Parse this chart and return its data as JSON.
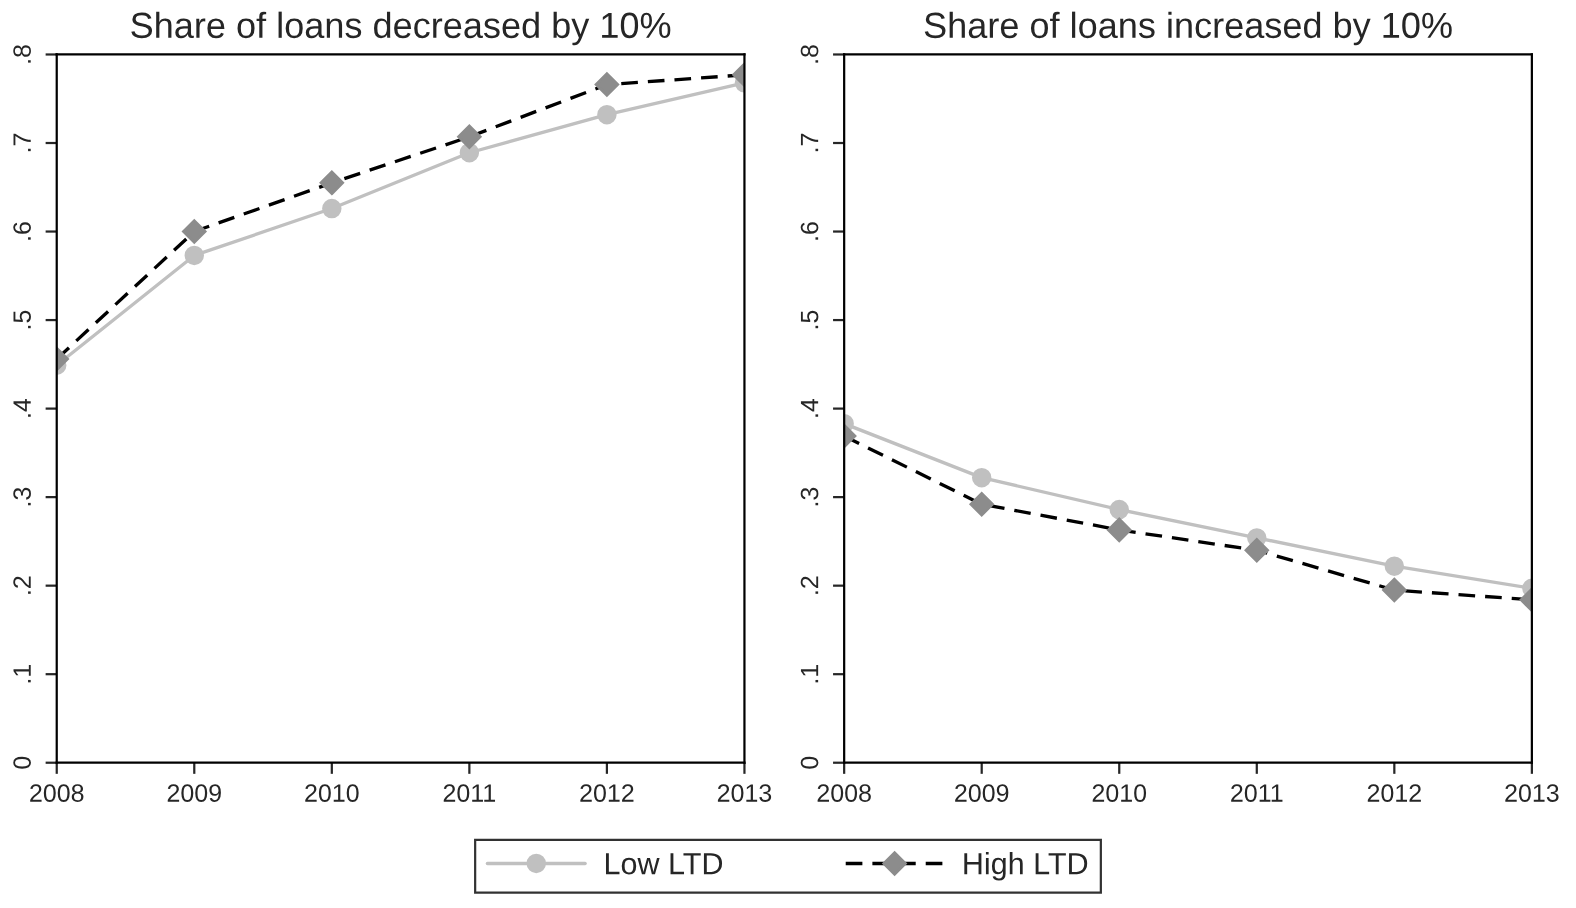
{
  "chart_data": [
    {
      "type": "line",
      "title": "Share of loans decreased by 10%",
      "x": [
        2008,
        2009,
        2010,
        2011,
        2012,
        2013
      ],
      "xlim": [
        2008,
        2013
      ],
      "xticks": [
        2008,
        2009,
        2010,
        2011,
        2012,
        2013
      ],
      "ylim": [
        0,
        0.8
      ],
      "yticks": [
        {
          "value": 0,
          "label": "0"
        },
        {
          "value": 0.1,
          "label": ".1"
        },
        {
          "value": 0.2,
          "label": ".2"
        },
        {
          "value": 0.3,
          "label": ".3"
        },
        {
          "value": 0.4,
          "label": ".4"
        },
        {
          "value": 0.5,
          "label": ".5"
        },
        {
          "value": 0.6,
          "label": ".6"
        },
        {
          "value": 0.7,
          "label": ".7"
        },
        {
          "value": 0.8,
          "label": ".8"
        }
      ],
      "grid": false,
      "legend": "bottom",
      "series": [
        {
          "name": "Low LTD",
          "color": "#c0c0c0",
          "marker": "circle",
          "line_style": "solid",
          "values": [
            0.449,
            0.573,
            0.626,
            0.689,
            0.732,
            0.768
          ]
        },
        {
          "name": "High LTD",
          "color": "#000000",
          "colors": [
            "#8c8c8c",
            "#8c8c8c",
            "#8c8c8c",
            "#8c8c8c",
            "#8c8c8c",
            "#8c8c8c"
          ],
          "marker": "diamond",
          "line_style": "dashed",
          "values": [
            0.456,
            0.6,
            0.655,
            0.707,
            0.766,
            0.777
          ]
        }
      ]
    },
    {
      "type": "line",
      "title": "Share of loans increased by 10%",
      "x": [
        2008,
        2009,
        2010,
        2011,
        2012,
        2013
      ],
      "xlim": [
        2008,
        2013
      ],
      "xticks": [
        2008,
        2009,
        2010,
        2011,
        2012,
        2013
      ],
      "ylim": [
        0,
        0.8
      ],
      "yticks": [
        {
          "value": 0,
          "label": "0"
        },
        {
          "value": 0.1,
          "label": ".1"
        },
        {
          "value": 0.2,
          "label": ".2"
        },
        {
          "value": 0.3,
          "label": ".3"
        },
        {
          "value": 0.4,
          "label": ".4"
        },
        {
          "value": 0.5,
          "label": ".5"
        },
        {
          "value": 0.6,
          "label": ".6"
        },
        {
          "value": 0.7,
          "label": ".7"
        },
        {
          "value": 0.8,
          "label": ".8"
        }
      ],
      "grid": false,
      "series": [
        {
          "name": "Low LTD",
          "color": "#c0c0c0",
          "marker": "circle",
          "line_style": "solid",
          "values": [
            0.383,
            0.322,
            0.286,
            0.254,
            0.222,
            0.197
          ]
        },
        {
          "name": "High LTD",
          "color": "#000000",
          "colors": [
            "#8c8c8c",
            "#8c8c8c",
            "#8c8c8c",
            "#8c8c8c",
            "#8c8c8c",
            "#8c8c8c"
          ],
          "marker": "diamond",
          "line_style": "dashed",
          "values": [
            0.369,
            0.292,
            0.263,
            0.24,
            0.195,
            0.184
          ]
        }
      ]
    }
  ]
}
